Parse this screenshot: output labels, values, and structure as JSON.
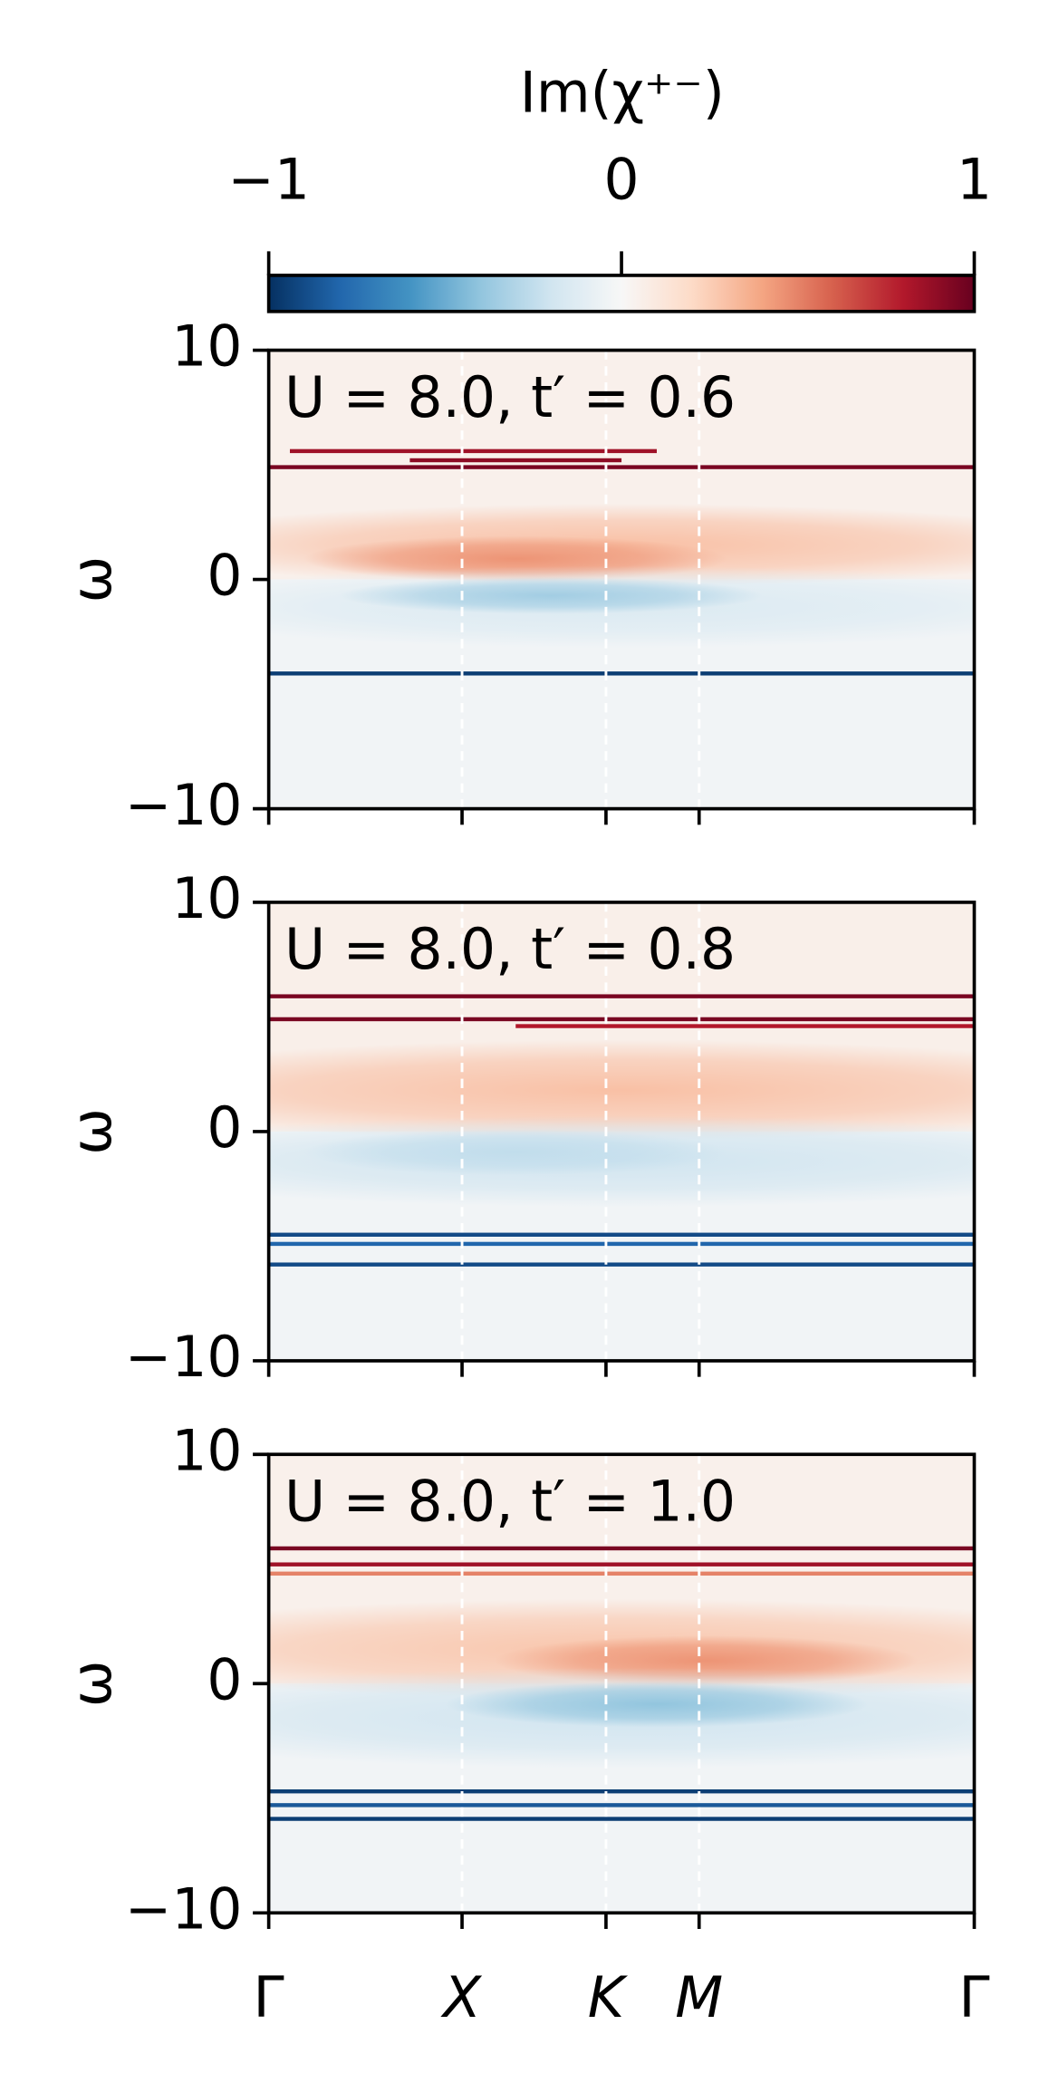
{
  "colorbar": {
    "label": "Im(χ⁺⁻)",
    "lim": [
      -1,
      1
    ],
    "ticks": [
      {
        "value": -1,
        "label": "−1"
      },
      0,
      1
    ],
    "colormap": "RdBu_r"
  },
  "chart_data": [
    {
      "type": "heatmap",
      "annotation": "U = 8.0, t′ = 0.6",
      "ylabel": "ω",
      "xlim": [
        0,
        1
      ],
      "ylim": [
        -10,
        10
      ],
      "yticks": [
        {
          "value": -10,
          "label": "−10"
        },
        0,
        10
      ],
      "regions": [
        {
          "y0": 0,
          "y1": 10,
          "value": 0.05
        },
        {
          "y0": -10,
          "y1": 0,
          "value": -0.03
        }
      ],
      "blobs": [
        {
          "x": 0.5,
          "y": 1.5,
          "rx": 0.7,
          "ry": 1.8,
          "value": 0.3
        },
        {
          "x": 0.35,
          "y": 0.9,
          "rx": 0.3,
          "ry": 1.0,
          "value": 0.45
        },
        {
          "x": 0.5,
          "y": -1.2,
          "rx": 0.7,
          "ry": 1.8,
          "value": -0.15
        },
        {
          "x": 0.4,
          "y": -0.7,
          "rx": 0.3,
          "ry": 0.8,
          "value": -0.35
        }
      ],
      "lines": [
        {
          "y": 4.9,
          "x0": 0,
          "x1": 1,
          "value": 0.95
        },
        {
          "y": 5.6,
          "x0": 0.03,
          "x1": 0.55,
          "value": 0.85
        },
        {
          "y": 5.2,
          "x0": 0.2,
          "x1": 0.5,
          "value": 0.9
        },
        {
          "y": -4.1,
          "x0": 0,
          "x1": 1,
          "value": -0.95
        }
      ]
    },
    {
      "type": "heatmap",
      "annotation": "U = 8.0, t′ = 0.8",
      "ylabel": "ω",
      "xlim": [
        0,
        1
      ],
      "ylim": [
        -10,
        10
      ],
      "yticks": [
        {
          "value": -10,
          "label": "−10"
        },
        0,
        10
      ],
      "regions": [
        {
          "y0": 0,
          "y1": 10,
          "value": 0.06
        },
        {
          "y0": -10,
          "y1": 0,
          "value": -0.03
        }
      ],
      "blobs": [
        {
          "x": 0.5,
          "y": 1.8,
          "rx": 0.8,
          "ry": 2.2,
          "value": 0.3
        },
        {
          "x": 0.5,
          "y": -1.3,
          "rx": 0.8,
          "ry": 2.0,
          "value": -0.2
        },
        {
          "x": 0.35,
          "y": -0.9,
          "rx": 0.3,
          "ry": 1.0,
          "value": -0.25
        }
      ],
      "lines": [
        {
          "y": 5.9,
          "x0": 0,
          "x1": 1,
          "value": 0.95
        },
        {
          "y": 4.9,
          "x0": 0,
          "x1": 1,
          "value": 0.95
        },
        {
          "y": 4.6,
          "x0": 0.35,
          "x1": 1,
          "value": 0.8
        },
        {
          "y": -4.5,
          "x0": 0,
          "x1": 1,
          "value": -0.9
        },
        {
          "y": -4.9,
          "x0": 0,
          "x1": 1,
          "value": -0.8
        },
        {
          "y": -5.8,
          "x0": 0,
          "x1": 1,
          "value": -0.9
        }
      ]
    },
    {
      "type": "heatmap",
      "annotation": "U = 8.0, t′ = 1.0",
      "ylabel": "ω",
      "xlim": [
        0,
        1
      ],
      "ylim": [
        -10,
        10
      ],
      "yticks": [
        {
          "value": -10,
          "label": "−10"
        },
        0,
        10
      ],
      "xticks": [
        {
          "value": 0,
          "label": "Γ"
        },
        {
          "value": 0.274,
          "label": "X"
        },
        {
          "value": 0.478,
          "label": "K"
        },
        {
          "value": 0.61,
          "label": "M"
        },
        {
          "value": 1,
          "label": "Γ"
        }
      ],
      "regions": [
        {
          "y0": 0,
          "y1": 10,
          "value": 0.05
        },
        {
          "y0": -10,
          "y1": 0,
          "value": -0.03
        }
      ],
      "blobs": [
        {
          "x": 0.5,
          "y": 1.5,
          "rx": 0.8,
          "ry": 2.2,
          "value": 0.28
        },
        {
          "x": 0.62,
          "y": 1.0,
          "rx": 0.3,
          "ry": 1.1,
          "value": 0.45
        },
        {
          "x": 0.5,
          "y": -1.5,
          "rx": 0.8,
          "ry": 2.2,
          "value": -0.2
        },
        {
          "x": 0.55,
          "y": -0.9,
          "rx": 0.3,
          "ry": 1.0,
          "value": -0.4
        }
      ],
      "lines": [
        {
          "y": 5.9,
          "x0": 0,
          "x1": 1,
          "value": 0.95
        },
        {
          "y": 5.2,
          "x0": 0,
          "x1": 1,
          "value": 0.85
        },
        {
          "y": 4.8,
          "x0": 0,
          "x1": 1,
          "value": 0.5
        },
        {
          "y": -4.7,
          "x0": 0,
          "x1": 1,
          "value": -0.95
        },
        {
          "y": -5.3,
          "x0": 0,
          "x1": 1,
          "value": -0.85
        },
        {
          "y": -5.9,
          "x0": 0,
          "x1": 1,
          "value": -0.95
        }
      ]
    }
  ]
}
